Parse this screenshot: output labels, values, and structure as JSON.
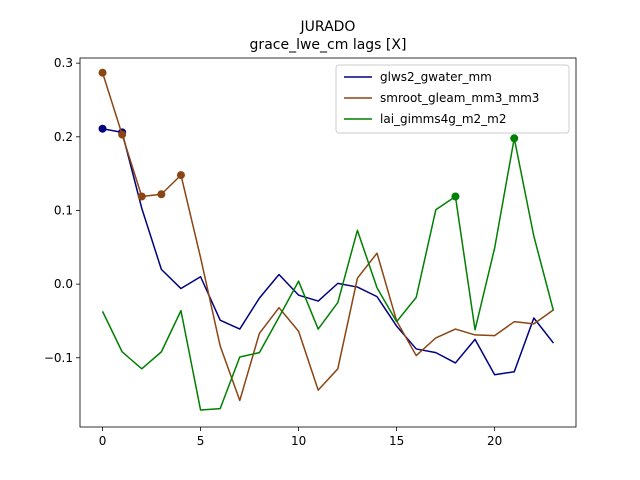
{
  "chart_data": {
    "type": "line",
    "title": "JURADO",
    "subtitle": "grace_lwe_cm lags [X]",
    "xlabel": "",
    "ylabel": "",
    "xlim": [
      -1.15,
      24.15
    ],
    "ylim": [
      -0.194,
      0.307
    ],
    "xticks": [
      0,
      5,
      10,
      15,
      20
    ],
    "yticks": [
      -0.1,
      0.0,
      0.1,
      0.2,
      0.3
    ],
    "ytick_labels": [
      "−0.1",
      "0.0",
      "0.1",
      "0.2",
      "0.3"
    ],
    "grid": false,
    "legend_position": "top-right",
    "x": [
      0,
      1,
      2,
      3,
      4,
      5,
      6,
      7,
      8,
      9,
      10,
      11,
      12,
      13,
      14,
      15,
      16,
      17,
      18,
      19,
      20,
      21,
      22,
      23
    ],
    "series": [
      {
        "name": "glws2_gwater_mm",
        "color": "#000080",
        "values": [
          0.211,
          0.206,
          0.103,
          0.02,
          -0.006,
          0.01,
          -0.049,
          -0.061,
          -0.019,
          0.013,
          -0.015,
          -0.023,
          0.001,
          -0.004,
          -0.017,
          -0.057,
          -0.088,
          -0.093,
          -0.107,
          -0.075,
          -0.123,
          -0.119,
          -0.046,
          -0.08
        ],
        "markers": [
          0,
          1
        ]
      },
      {
        "name": "smroot_gleam_mm3_mm3",
        "color": "#8B4513",
        "values": [
          0.287,
          0.203,
          0.119,
          0.122,
          0.148,
          0.036,
          -0.084,
          -0.158,
          -0.067,
          -0.032,
          -0.064,
          -0.144,
          -0.115,
          0.008,
          0.042,
          -0.05,
          -0.097,
          -0.073,
          -0.061,
          -0.069,
          -0.07,
          -0.051,
          -0.054,
          -0.035
        ],
        "markers": [
          0,
          1,
          2,
          3,
          4
        ]
      },
      {
        "name": "lai_gimms4g_m2_m2",
        "color": "#008000",
        "values": [
          -0.037,
          -0.092,
          -0.115,
          -0.092,
          -0.036,
          -0.171,
          -0.169,
          -0.099,
          -0.093,
          -0.045,
          0.004,
          -0.061,
          -0.025,
          0.073,
          -0.005,
          -0.051,
          -0.018,
          0.101,
          0.119,
          -0.062,
          0.049,
          0.198,
          0.065,
          -0.036
        ],
        "markers": [
          18,
          21
        ]
      }
    ]
  }
}
